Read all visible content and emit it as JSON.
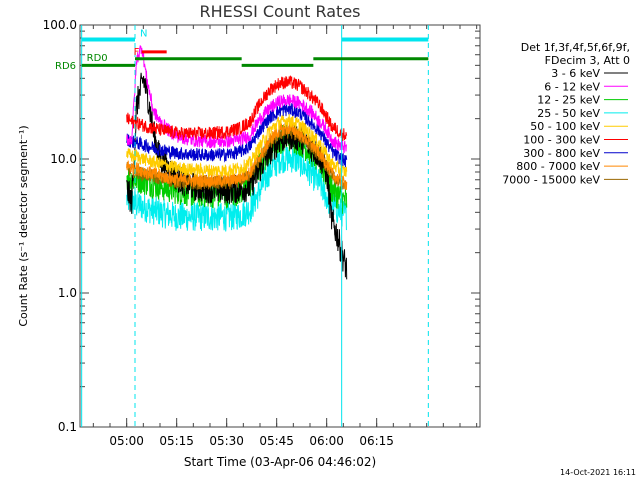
{
  "chart_data": {
    "type": "line",
    "title": "RHESSI Count Rates",
    "xlabel": "Start Time (03-Apr-06 04:46:02)",
    "ylabel": "Count Rate (s⁻¹ detector segment⁻¹)",
    "yscale": "log",
    "ylim": [
      0.1,
      100
    ],
    "xlim_minutes": [
      46,
      166
    ],
    "y_ticks": [
      {
        "value": 0.1,
        "label": "0.1"
      },
      {
        "value": 1,
        "label": "1.0"
      },
      {
        "value": 10,
        "label": "10.0"
      },
      {
        "value": 100,
        "label": "100.0"
      }
    ],
    "x_ticks": [
      {
        "minute": 60,
        "label": "05:00"
      },
      {
        "minute": 75,
        "label": "05:15"
      },
      {
        "minute": 90,
        "label": "05:30"
      },
      {
        "minute": 105,
        "label": "05:45"
      },
      {
        "minute": 120,
        "label": "06:00"
      },
      {
        "minute": 135,
        "label": "06:15"
      }
    ],
    "legend_header": [
      "Det 1f,3f,4f,5f,6f,9f,",
      "FDecim 3, Att 0"
    ],
    "legend_placement": "right",
    "series": [
      {
        "name": "3 - 6 keV",
        "color": "#000000",
        "x": [
          60,
          61.5,
          63,
          65,
          66.5,
          68,
          70,
          73,
          76,
          80,
          85,
          90,
          94,
          97,
          100,
          103,
          106,
          109,
          112,
          115,
          118,
          120,
          121.5,
          123,
          124.5,
          126
        ],
        "y": [
          6,
          4.8,
          25,
          40,
          28,
          16,
          10,
          8.2,
          7,
          6.2,
          6,
          5.9,
          6,
          6.2,
          8.5,
          11.5,
          14,
          15,
          14.5,
          12.5,
          10.5,
          8,
          3.5,
          2.8,
          2,
          1.5
        ]
      },
      {
        "name": "6 - 12 keV",
        "color": "#ff00ff",
        "x": [
          60,
          61.5,
          63,
          64.5,
          66,
          68,
          70,
          73,
          76,
          80,
          85,
          90,
          94,
          97,
          100,
          103,
          106,
          109,
          112,
          115,
          118,
          120,
          121.5,
          123,
          124.5,
          126
        ],
        "y": [
          14,
          14,
          55,
          70,
          40,
          23,
          19,
          16,
          14.5,
          13.8,
          13.5,
          13.5,
          14,
          15,
          20,
          24,
          27,
          27.5,
          26,
          23,
          19,
          16.5,
          14,
          13,
          12.5,
          12
        ]
      },
      {
        "name": "12 - 25 keV",
        "color": "#00cc00",
        "x": [
          60,
          61.5,
          63,
          66,
          70,
          73,
          76,
          80,
          85,
          90,
          94,
          97,
          100,
          103,
          106,
          109,
          112,
          115,
          118,
          120,
          121.5,
          123,
          124.5,
          126
        ],
        "y": [
          7.5,
          7,
          7.2,
          6.8,
          6.3,
          6,
          5.8,
          5.6,
          5.5,
          5.5,
          5.8,
          6.5,
          9,
          12,
          14,
          14.5,
          13.5,
          11.5,
          9.5,
          7.5,
          6,
          5.5,
          5,
          4.8
        ]
      },
      {
        "name": "25 - 50 keV",
        "color": "#00eeee",
        "x": [
          60,
          61.5,
          63,
          66,
          70,
          73,
          76,
          80,
          85,
          90,
          94,
          97,
          100,
          103,
          106,
          109,
          112,
          115,
          118,
          120,
          121.5,
          123,
          124.5,
          126
        ],
        "y": [
          5,
          4.8,
          4.6,
          4.3,
          4,
          3.8,
          3.7,
          3.7,
          3.7,
          3.7,
          3.8,
          4.2,
          5.8,
          8.3,
          10,
          10.2,
          9.5,
          8,
          6.5,
          5.2,
          4.5,
          4.2,
          4,
          3.8
        ]
      },
      {
        "name": "50 - 100 keV",
        "color": "#ffcc00",
        "x": [
          60,
          61.5,
          63,
          66,
          70,
          73,
          76,
          80,
          85,
          90,
          94,
          97,
          100,
          103,
          106,
          109,
          112,
          115,
          118,
          120,
          121.5,
          123,
          124.5,
          126
        ],
        "y": [
          11,
          10.5,
          10.5,
          9.8,
          9.2,
          8.8,
          8.5,
          8.3,
          8.2,
          8.2,
          8.5,
          9.3,
          12.5,
          16.5,
          19,
          19.5,
          18,
          15.5,
          13,
          10.8,
          9.3,
          8.6,
          8.2,
          8
        ]
      },
      {
        "name": "100 - 300 keV",
        "color": "#ff0000",
        "x": [
          60,
          61.5,
          63,
          66,
          70,
          73,
          76,
          80,
          85,
          90,
          94,
          97,
          100,
          103,
          106,
          109,
          112,
          115,
          118,
          120,
          121.5,
          123,
          124.5,
          126
        ],
        "y": [
          20,
          19,
          18.5,
          17.5,
          16.5,
          16,
          15.5,
          15.5,
          15.5,
          16,
          17,
          19,
          26,
          33,
          37,
          37.5,
          35,
          30,
          25,
          20.5,
          17.5,
          16.5,
          15.5,
          15
        ]
      },
      {
        "name": "300 - 800 keV",
        "color": "#0000cc",
        "x": [
          60,
          61.5,
          63,
          66,
          70,
          73,
          76,
          80,
          85,
          90,
          94,
          97,
          100,
          103,
          106,
          109,
          112,
          115,
          118,
          120,
          121.5,
          123,
          124.5,
          126
        ],
        "y": [
          14,
          13.5,
          13.2,
          12.5,
          11.8,
          11.3,
          11,
          10.8,
          10.7,
          10.8,
          11.3,
          12.5,
          16.5,
          20.5,
          23,
          23.5,
          22,
          19,
          16,
          13.2,
          11.5,
          10.5,
          10,
          9.5
        ]
      },
      {
        "name": "800 - 7000 keV",
        "color": "#ff8800",
        "x": [
          60,
          61.5,
          63,
          66,
          70,
          73,
          76,
          80,
          85,
          90,
          94,
          97,
          100,
          103,
          106,
          109,
          112,
          115,
          118,
          120,
          121.5,
          123,
          124.5,
          126
        ],
        "y": [
          9,
          8.6,
          8.5,
          8,
          7.5,
          7.2,
          7,
          6.9,
          6.9,
          6.9,
          7.2,
          8,
          10.5,
          14,
          16.5,
          17,
          15.5,
          13.2,
          11,
          9.2,
          7.8,
          7.2,
          6.8,
          6.5
        ]
      },
      {
        "name": "7000 - 15000 keV",
        "color": "#996600",
        "x": [
          60,
          61.5,
          63,
          66,
          70,
          73,
          76,
          80,
          85,
          90,
          94,
          97,
          100,
          103,
          106,
          109,
          112,
          115,
          118,
          120,
          121.5,
          123,
          124.5,
          126
        ],
        "y": [
          8.5,
          8.2,
          8,
          7.6,
          7.2,
          6.9,
          6.7,
          6.6,
          6.6,
          6.6,
          6.9,
          7.7,
          10,
          13.2,
          15.5,
          16,
          14.8,
          12.7,
          10.6,
          8.8,
          7.5,
          6.9,
          6.5,
          6.2
        ]
      }
    ],
    "vertical_lines": [
      {
        "minute": 46.5,
        "style": "solid",
        "color": "#00e5ee"
      },
      {
        "minute": 62.5,
        "style": "dashed",
        "color": "#00e5ee"
      },
      {
        "minute": 124.5,
        "style": "solid",
        "color": "#00e5ee"
      },
      {
        "minute": 150.5,
        "style": "dashed",
        "color": "#00e5ee"
      }
    ],
    "cyan_bars": [
      {
        "start": 46.5,
        "end": 62.5,
        "value": 78
      },
      {
        "start": 124.5,
        "end": 150.5,
        "value": 78
      }
    ],
    "red_flag": {
      "label": "F",
      "start": 64.5,
      "end": 72,
      "value": 63,
      "color": "#ff0000"
    },
    "n_marker": {
      "label": "N",
      "minute": 64,
      "color": "#00e5ee"
    },
    "green_bars": [
      {
        "start": 46.5,
        "end": 62.5,
        "value": 50
      },
      {
        "start": 62.5,
        "end": 94.5,
        "value": 56
      },
      {
        "start": 94.5,
        "end": 116,
        "value": 50
      },
      {
        "start": 116,
        "end": 150.5,
        "value": 56
      }
    ],
    "green_labels": [
      "RD0",
      "RD6"
    ],
    "footer_date": "14-Oct-2021 16:11"
  }
}
